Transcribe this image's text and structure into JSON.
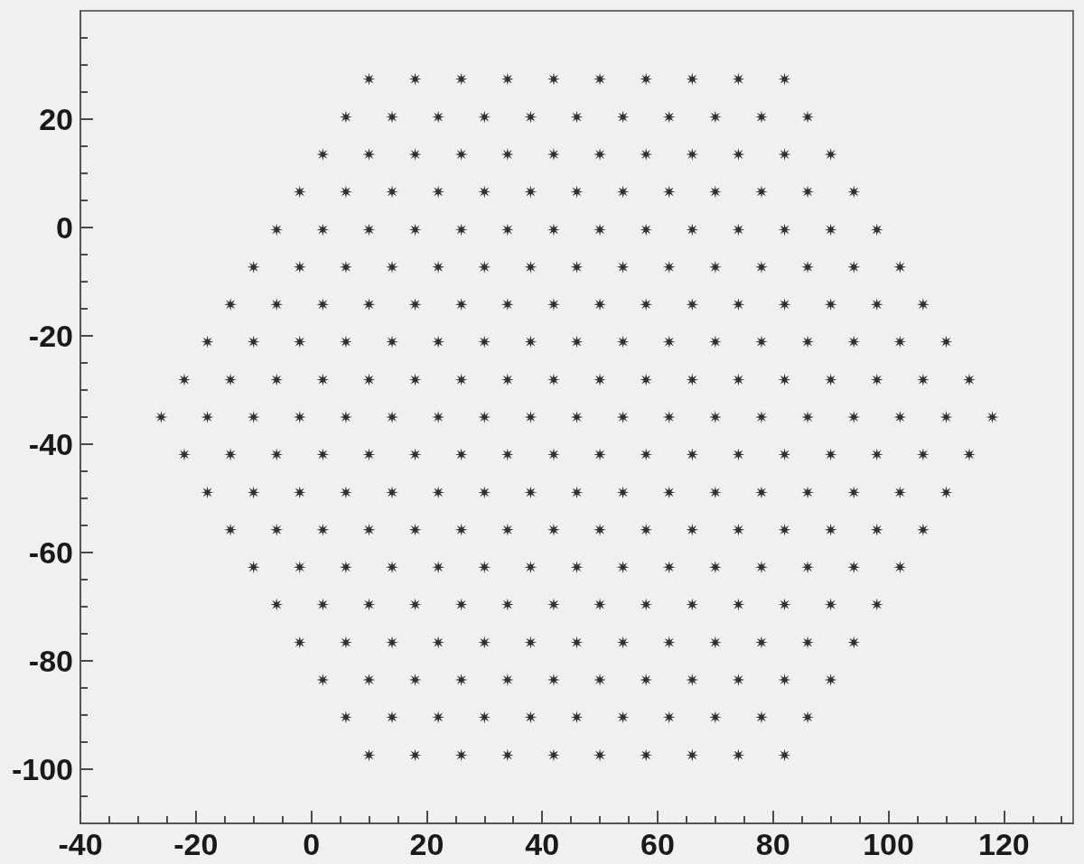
{
  "chart_data": {
    "type": "scatter",
    "color": "#000000",
    "marker": "star",
    "grid": false,
    "xlim": [
      -40,
      132
    ],
    "ylim": [
      -110,
      40
    ],
    "xticks": [
      -40,
      {
        "value": -35,
        "label": null
      },
      {
        "value": -30,
        "label": null
      },
      {
        "value": -25,
        "label": null
      },
      -20,
      {
        "value": -15,
        "label": null
      },
      {
        "value": -10,
        "label": null
      },
      {
        "value": -5,
        "label": null
      },
      0,
      {
        "value": 5,
        "label": null
      },
      {
        "value": 10,
        "label": null
      },
      {
        "value": 15,
        "label": null
      },
      20,
      {
        "value": 25,
        "label": null
      },
      {
        "value": 30,
        "label": null
      },
      {
        "value": 35,
        "label": null
      },
      40,
      {
        "value": 45,
        "label": null
      },
      {
        "value": 50,
        "label": null
      },
      {
        "value": 55,
        "label": null
      },
      60,
      {
        "value": 65,
        "label": null
      },
      {
        "value": 70,
        "label": null
      },
      {
        "value": 75,
        "label": null
      },
      80,
      {
        "value": 85,
        "label": null
      },
      {
        "value": 90,
        "label": null
      },
      {
        "value": 95,
        "label": null
      },
      100,
      {
        "value": 105,
        "label": null
      },
      {
        "value": 110,
        "label": null
      },
      {
        "value": 115,
        "label": null
      },
      120,
      {
        "value": 125,
        "label": null
      },
      {
        "value": 130,
        "label": null
      }
    ],
    "yticks": [
      {
        "value": -105,
        "label": null
      },
      -100,
      {
        "value": -95,
        "label": null
      },
      {
        "value": -90,
        "label": null
      },
      {
        "value": -85,
        "label": null
      },
      -80,
      {
        "value": -75,
        "label": null
      },
      {
        "value": -70,
        "label": null
      },
      {
        "value": -65,
        "label": null
      },
      -60,
      {
        "value": -55,
        "label": null
      },
      {
        "value": -50,
        "label": null
      },
      {
        "value": -45,
        "label": null
      },
      -40,
      {
        "value": -35,
        "label": null
      },
      {
        "value": -30,
        "label": null
      },
      {
        "value": -25,
        "label": null
      },
      -20,
      {
        "value": -15,
        "label": null
      },
      {
        "value": -10,
        "label": null
      },
      {
        "value": -5,
        "label": null
      },
      0,
      {
        "value": 5,
        "label": null
      },
      {
        "value": 10,
        "label": null
      },
      {
        "value": 15,
        "label": null
      },
      20,
      {
        "value": 25,
        "label": null
      },
      {
        "value": 30,
        "label": null
      },
      {
        "value": 35,
        "label": null
      }
    ],
    "x": [
      10,
      18,
      26,
      34,
      42,
      50,
      58,
      66,
      74,
      82,
      6,
      14,
      22,
      30,
      38,
      46,
      54,
      62,
      70,
      78,
      86,
      2,
      10,
      18,
      26,
      34,
      42,
      50,
      58,
      66,
      74,
      82,
      90,
      -2,
      6,
      14,
      22,
      30,
      38,
      46,
      54,
      62,
      70,
      78,
      86,
      94,
      -6,
      2,
      10,
      18,
      26,
      34,
      42,
      50,
      58,
      66,
      74,
      82,
      90,
      98,
      -10,
      -2,
      6,
      14,
      22,
      30,
      38,
      46,
      54,
      62,
      70,
      78,
      86,
      94,
      102,
      -14,
      -6,
      2,
      10,
      18,
      26,
      34,
      42,
      50,
      58,
      66,
      74,
      82,
      90,
      98,
      106,
      -18,
      -10,
      -2,
      6,
      14,
      22,
      30,
      38,
      46,
      54,
      62,
      70,
      78,
      86,
      94,
      102,
      110,
      -22,
      -14,
      -6,
      2,
      10,
      18,
      26,
      34,
      42,
      50,
      58,
      66,
      74,
      82,
      90,
      98,
      106,
      114,
      -26,
      -18,
      -10,
      -2,
      6,
      14,
      22,
      30,
      38,
      46,
      54,
      62,
      70,
      78,
      86,
      94,
      102,
      110,
      118,
      -22,
      -14,
      -6,
      2,
      10,
      18,
      26,
      34,
      42,
      50,
      58,
      66,
      74,
      82,
      90,
      98,
      106,
      114,
      -18,
      -10,
      -2,
      6,
      14,
      22,
      30,
      38,
      46,
      54,
      62,
      70,
      78,
      86,
      94,
      102,
      110,
      -14,
      -6,
      2,
      10,
      18,
      26,
      34,
      42,
      50,
      58,
      66,
      74,
      82,
      90,
      98,
      106,
      -10,
      -2,
      6,
      14,
      22,
      30,
      38,
      46,
      54,
      62,
      70,
      78,
      86,
      94,
      102,
      -6,
      2,
      10,
      18,
      26,
      34,
      42,
      50,
      58,
      66,
      74,
      82,
      90,
      98,
      -2,
      6,
      14,
      22,
      30,
      38,
      46,
      54,
      62,
      70,
      78,
      86,
      94,
      2,
      10,
      18,
      26,
      34,
      42,
      50,
      58,
      66,
      74,
      82,
      90,
      6,
      14,
      22,
      30,
      38,
      46,
      54,
      62,
      70,
      78,
      86,
      10,
      18,
      26,
      34,
      42,
      50,
      58,
      66,
      74,
      82
    ],
    "values": [
      27.4,
      27.4,
      27.4,
      27.4,
      27.4,
      27.4,
      27.4,
      27.4,
      27.4,
      27.4,
      20.4,
      20.4,
      20.4,
      20.4,
      20.4,
      20.4,
      20.4,
      20.4,
      20.4,
      20.4,
      20.4,
      13.5,
      13.5,
      13.5,
      13.5,
      13.5,
      13.5,
      13.5,
      13.5,
      13.5,
      13.5,
      13.5,
      13.5,
      6.6,
      6.6,
      6.6,
      6.6,
      6.6,
      6.6,
      6.6,
      6.6,
      6.6,
      6.6,
      6.6,
      6.6,
      6.6,
      -0.4,
      -0.4,
      -0.4,
      -0.4,
      -0.4,
      -0.4,
      -0.4,
      -0.4,
      -0.4,
      -0.4,
      -0.4,
      -0.4,
      -0.4,
      -0.4,
      -7.3,
      -7.3,
      -7.3,
      -7.3,
      -7.3,
      -7.3,
      -7.3,
      -7.3,
      -7.3,
      -7.3,
      -7.3,
      -7.3,
      -7.3,
      -7.3,
      -7.3,
      -14.2,
      -14.2,
      -14.2,
      -14.2,
      -14.2,
      -14.2,
      -14.2,
      -14.2,
      -14.2,
      -14.2,
      -14.2,
      -14.2,
      -14.2,
      -14.2,
      -14.2,
      -14.2,
      -21.1,
      -21.1,
      -21.1,
      -21.1,
      -21.1,
      -21.1,
      -21.1,
      -21.1,
      -21.1,
      -21.1,
      -21.1,
      -21.1,
      -21.1,
      -21.1,
      -21.1,
      -21.1,
      -21.1,
      -28.1,
      -28.1,
      -28.1,
      -28.1,
      -28.1,
      -28.1,
      -28.1,
      -28.1,
      -28.1,
      -28.1,
      -28.1,
      -28.1,
      -28.1,
      -28.1,
      -28.1,
      -28.1,
      -28.1,
      -28.1,
      -35,
      -35,
      -35,
      -35,
      -35,
      -35,
      -35,
      -35,
      -35,
      -35,
      -35,
      -35,
      -35,
      -35,
      -35,
      -35,
      -35,
      -35,
      -35,
      -41.9,
      -41.9,
      -41.9,
      -41.9,
      -41.9,
      -41.9,
      -41.9,
      -41.9,
      -41.9,
      -41.9,
      -41.9,
      -41.9,
      -41.9,
      -41.9,
      -41.9,
      -41.9,
      -41.9,
      -41.9,
      -48.9,
      -48.9,
      -48.9,
      -48.9,
      -48.9,
      -48.9,
      -48.9,
      -48.9,
      -48.9,
      -48.9,
      -48.9,
      -48.9,
      -48.9,
      -48.9,
      -48.9,
      -48.9,
      -48.9,
      -55.8,
      -55.8,
      -55.8,
      -55.8,
      -55.8,
      -55.8,
      -55.8,
      -55.8,
      -55.8,
      -55.8,
      -55.8,
      -55.8,
      -55.8,
      -55.8,
      -55.8,
      -55.8,
      -62.7,
      -62.7,
      -62.7,
      -62.7,
      -62.7,
      -62.7,
      -62.7,
      -62.7,
      -62.7,
      -62.7,
      -62.7,
      -62.7,
      -62.7,
      -62.7,
      -62.7,
      -69.6,
      -69.6,
      -69.6,
      -69.6,
      -69.6,
      -69.6,
      -69.6,
      -69.6,
      -69.6,
      -69.6,
      -69.6,
      -69.6,
      -69.6,
      -69.6,
      -76.6,
      -76.6,
      -76.6,
      -76.6,
      -76.6,
      -76.6,
      -76.6,
      -76.6,
      -76.6,
      -76.6,
      -76.6,
      -76.6,
      -76.6,
      -83.5,
      -83.5,
      -83.5,
      -83.5,
      -83.5,
      -83.5,
      -83.5,
      -83.5,
      -83.5,
      -83.5,
      -83.5,
      -83.5,
      -90.4,
      -90.4,
      -90.4,
      -90.4,
      -90.4,
      -90.4,
      -90.4,
      -90.4,
      -90.4,
      -90.4,
      -90.4,
      -97.4,
      -97.4,
      -97.4,
      -97.4,
      -97.4,
      -97.4,
      -97.4,
      -97.4,
      -97.4,
      -97.4
    ]
  }
}
